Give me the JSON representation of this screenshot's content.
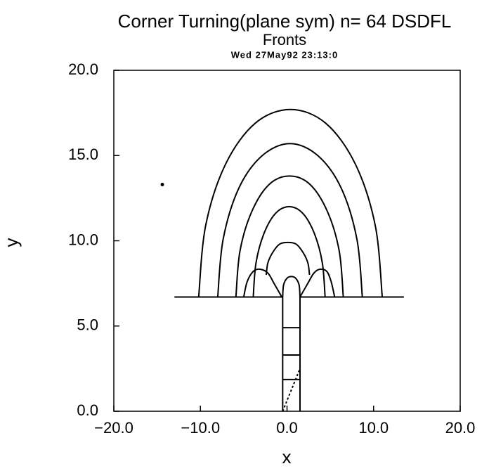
{
  "chart_data": {
    "type": "line",
    "title": "Corner Turning(plane sym)  n= 64 DSDFL",
    "subtitle": "Fronts",
    "timestamp": "Wed 27May92 23:13:0",
    "x_label": "x",
    "y_label": "y",
    "xlim": [
      -20,
      20
    ],
    "ylim": [
      0,
      20
    ],
    "xticks": [
      {
        "value": -20,
        "label": "−20.0"
      },
      {
        "value": -10,
        "label": "−10.0"
      },
      {
        "value": 0,
        "label": "0.0"
      },
      {
        "value": 10,
        "label": "10.0"
      },
      {
        "value": 20,
        "label": "20.0"
      }
    ],
    "yticks": [
      {
        "value": 0,
        "label": "0.0"
      },
      {
        "value": 5,
        "label": "5.0"
      },
      {
        "value": 10,
        "label": "10.0"
      },
      {
        "value": 15,
        "label": "15.0"
      },
      {
        "value": 20,
        "label": "20.0"
      }
    ],
    "color": "#000000",
    "series": [
      {
        "x": [
          11.0,
          10.19,
          7.89,
          4.46,
          0.4,
          -3.66,
          -7.09,
          -9.39,
          -10.2
        ],
        "values": [
          6.7,
          10.9,
          14.5,
          16.9,
          17.7,
          16.9,
          14.5,
          10.9,
          6.7
        ]
      },
      {
        "x": [
          8.7,
          8.07,
          6.25,
          3.55,
          0.35,
          -2.85,
          -5.55,
          -7.37,
          -8.0
        ],
        "values": [
          6.7,
          10.1,
          13.1,
          15.0,
          15.7,
          15.0,
          13.1,
          10.1,
          6.7
        ]
      },
      {
        "x": [
          6.5,
          6.03,
          4.68,
          2.67,
          0.3,
          -2.07,
          -4.08,
          -5.43,
          -5.9
        ],
        "values": [
          6.7,
          9.4,
          11.7,
          13.3,
          13.8,
          13.3,
          11.7,
          9.4,
          6.7
        ]
      },
      {
        "x": [
          4.4,
          4.08,
          3.18,
          1.84,
          0.25,
          -1.34,
          -2.68,
          -3.58,
          -3.9
        ],
        "values": [
          6.7,
          8.7,
          10.4,
          11.6,
          12.0,
          11.6,
          10.4,
          8.7,
          6.7
        ]
      },
      {
        "x": [
          2.6,
          2.41,
          1.87,
          1.06,
          0.1,
          -0.86,
          -1.67,
          -2.21,
          -2.4
        ],
        "values": [
          8.0,
          8.7,
          9.3,
          9.8,
          9.9,
          9.8,
          9.3,
          8.7,
          8.0
        ]
      },
      {
        "x": [
          -5.0,
          -4.6,
          -3.9,
          -3.1,
          -2.2,
          -1.5,
          -0.6
        ],
        "values": [
          6.7,
          7.6,
          8.2,
          8.33,
          8.1,
          7.5,
          6.7
        ]
      },
      {
        "x": [
          1.5,
          2.4,
          3.1,
          3.8,
          4.6,
          5.1,
          5.5
        ],
        "values": [
          6.7,
          7.5,
          8.1,
          8.33,
          8.2,
          7.6,
          6.7
        ]
      },
      {
        "x": [
          -0.5,
          -0.4,
          0,
          0.5,
          1.0,
          1.4,
          1.5
        ],
        "values": [
          6.7,
          7.4,
          7.8,
          7.9,
          7.8,
          7.4,
          6.7
        ]
      },
      {
        "x": [
          -13,
          -0.5
        ],
        "values": [
          6.7,
          6.7
        ]
      },
      {
        "x": [
          1.5,
          13.5
        ],
        "values": [
          6.7,
          6.7
        ]
      },
      {
        "x": [
          -0.5,
          -0.5
        ],
        "values": [
          0,
          6.7
        ]
      },
      {
        "x": [
          1.5,
          1.5
        ],
        "values": [
          0,
          6.7
        ]
      },
      {
        "x": [
          -0.5,
          1.5
        ],
        "values": [
          4.9,
          4.9
        ]
      },
      {
        "x": [
          -0.5,
          1.5
        ],
        "values": [
          3.3,
          3.3
        ]
      },
      {
        "x": [
          -0.5,
          1.5
        ],
        "values": [
          1.86,
          1.86
        ]
      },
      {
        "x": [
          -0.5,
          1.5
        ],
        "values": [
          0,
          2.5
        ],
        "dashed": true
      }
    ],
    "points": {
      "x": [
        -14.4
      ],
      "values": [
        13.3
      ]
    }
  }
}
